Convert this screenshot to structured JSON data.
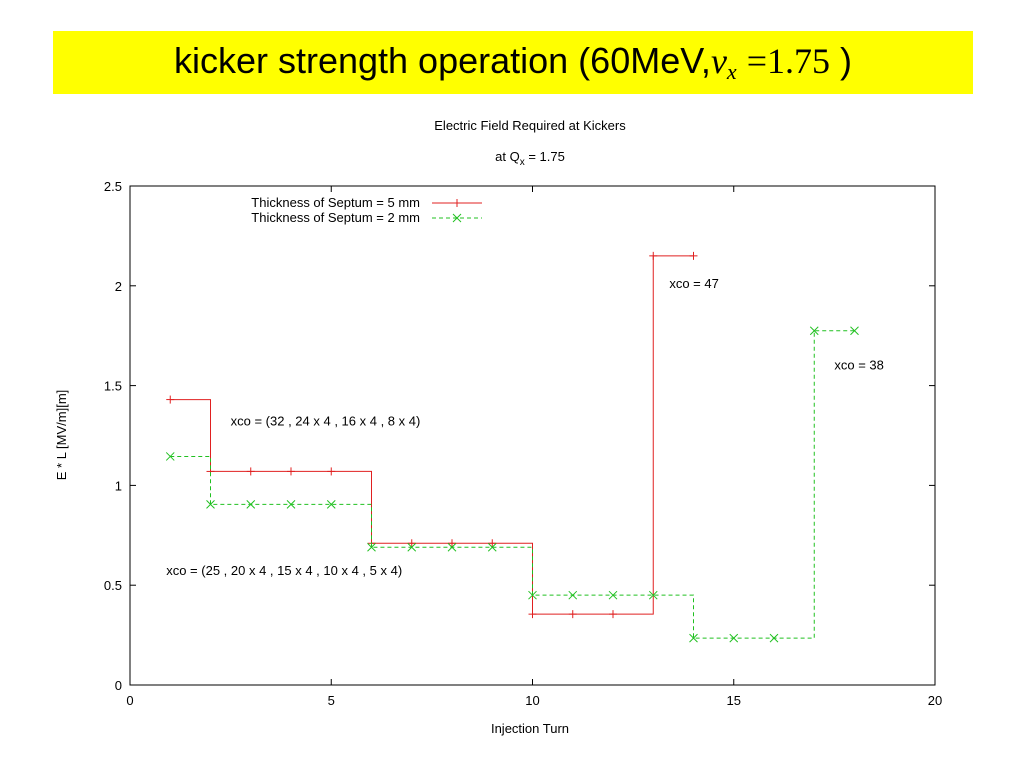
{
  "header": {
    "title_prefix": "kicker strength operation (60MeV,",
    "nu": "ν",
    "nu_sub": "x",
    "equals": "=",
    "value": "1.75",
    "suffix": " )",
    "bg_color": "#ffff00"
  },
  "chart_data": {
    "type": "line",
    "title": "Electric Field Required at Kickers",
    "subtitle_prefix": "at Q",
    "subtitle_sub": "x",
    "subtitle_suffix": " = 1.75",
    "xlabel": "Injection Turn",
    "ylabel": "E * L [MV/m][m]",
    "xlim": [
      0,
      20
    ],
    "ylim": [
      0,
      2.5
    ],
    "xticks": [
      0,
      5,
      10,
      15,
      20
    ],
    "yticks": [
      0,
      0.5,
      1,
      1.5,
      2,
      2.5
    ],
    "xtick_labels": [
      "0",
      "5",
      "10",
      "15",
      "20"
    ],
    "ytick_labels": [
      "0",
      "0.5",
      "1",
      "1.5",
      "2",
      "2.5"
    ],
    "grid": false,
    "legend_position": "top-left",
    "series": [
      {
        "name": "Thickness of Septum = 5 mm",
        "color": "#e02020",
        "marker": "plus",
        "line": "solid",
        "step": "post",
        "x": [
          1,
          2,
          3,
          4,
          5,
          6,
          7,
          8,
          9,
          10,
          11,
          12,
          13,
          14
        ],
        "y": [
          1.43,
          1.07,
          1.07,
          1.07,
          1.07,
          0.71,
          0.71,
          0.71,
          0.71,
          0.355,
          0.355,
          0.355,
          2.15,
          2.15
        ]
      },
      {
        "name": "Thickness of Septum = 2 mm",
        "color": "#20c020",
        "marker": "cross",
        "line": "dashed",
        "step": "post",
        "x": [
          1,
          2,
          3,
          4,
          5,
          6,
          7,
          8,
          9,
          10,
          11,
          12,
          13,
          14,
          15,
          16,
          17,
          18
        ],
        "y": [
          1.145,
          0.905,
          0.905,
          0.905,
          0.905,
          0.69,
          0.69,
          0.69,
          0.69,
          0.45,
          0.45,
          0.45,
          0.45,
          0.235,
          0.235,
          0.235,
          1.775,
          1.775
        ]
      }
    ],
    "annotations": [
      {
        "text": "xco = (32 , 24 x 4 , 16 x 4 , 8 x 4)",
        "x": 2.5,
        "y": 1.3
      },
      {
        "text": "xco = (25 , 20 x 4 , 15 x 4 , 10 x 4 , 5 x 4)",
        "x": 0.9,
        "y": 0.55
      },
      {
        "text": "xco = 47",
        "x": 13.4,
        "y": 1.99
      },
      {
        "text": "xco = 38",
        "x": 17.5,
        "y": 1.58
      }
    ]
  }
}
